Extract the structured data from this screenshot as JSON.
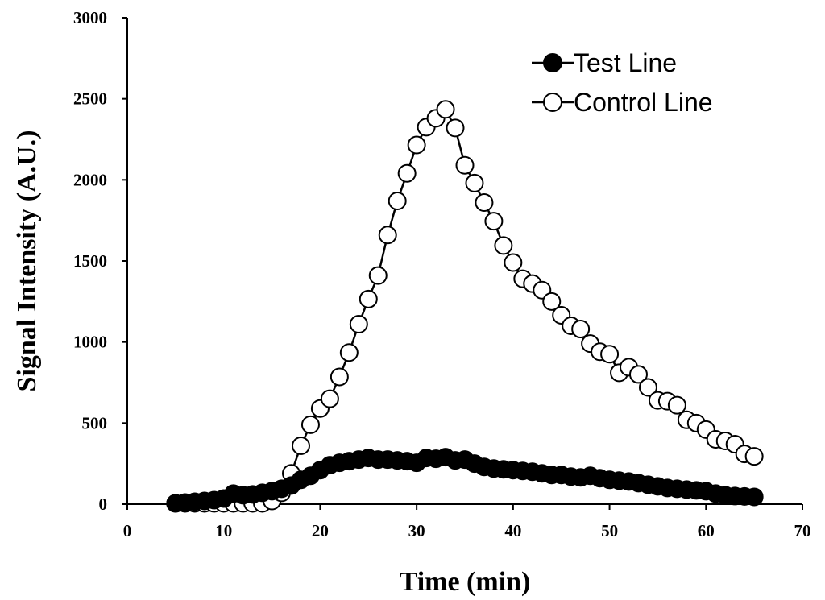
{
  "chart_data": {
    "type": "line",
    "title": "",
    "xlabel": "Time (min)",
    "ylabel": "Signal Intensity (A.U.)",
    "xlim": [
      0,
      70
    ],
    "ylim": [
      0,
      3000
    ],
    "xticks": [
      0,
      10,
      20,
      30,
      40,
      50,
      60,
      70
    ],
    "yticks": [
      0,
      500,
      1000,
      1500,
      2000,
      2500,
      3000
    ],
    "grid": false,
    "legend_position": "top-right",
    "series": [
      {
        "name": "Test Line",
        "marker": "filled-circle",
        "x": [
          5,
          6,
          7,
          8,
          9,
          10,
          11,
          12,
          13,
          14,
          15,
          16,
          17,
          18,
          19,
          20,
          21,
          22,
          23,
          24,
          25,
          26,
          27,
          28,
          29,
          30,
          31,
          32,
          33,
          34,
          35,
          36,
          37,
          38,
          39,
          40,
          41,
          42,
          43,
          44,
          45,
          46,
          47,
          48,
          49,
          50,
          51,
          52,
          53,
          54,
          55,
          56,
          57,
          58,
          59,
          60,
          61,
          62,
          63,
          64,
          65
        ],
        "y": [
          5,
          10,
          15,
          20,
          25,
          35,
          65,
          55,
          60,
          70,
          80,
          95,
          115,
          150,
          175,
          210,
          240,
          255,
          265,
          275,
          285,
          275,
          275,
          270,
          265,
          255,
          285,
          280,
          290,
          270,
          275,
          250,
          230,
          220,
          215,
          210,
          205,
          200,
          190,
          180,
          180,
          170,
          165,
          175,
          160,
          150,
          145,
          140,
          130,
          120,
          110,
          100,
          95,
          90,
          85,
          80,
          65,
          55,
          50,
          48,
          45
        ]
      },
      {
        "name": "Control Line",
        "marker": "open-circle",
        "x": [
          5,
          6,
          7,
          8,
          9,
          10,
          11,
          12,
          13,
          14,
          15,
          16,
          17,
          18,
          19,
          20,
          21,
          22,
          23,
          24,
          25,
          26,
          27,
          28,
          29,
          30,
          31,
          32,
          33,
          34,
          35,
          36,
          37,
          38,
          39,
          40,
          41,
          42,
          43,
          44,
          45,
          46,
          47,
          48,
          49,
          50,
          51,
          52,
          53,
          54,
          55,
          56,
          57,
          58,
          59,
          60,
          61,
          62,
          63,
          64,
          65
        ],
        "y": [
          5,
          5,
          5,
          5,
          5,
          5,
          5,
          5,
          5,
          5,
          20,
          70,
          190,
          360,
          490,
          590,
          650,
          785,
          935,
          1110,
          1265,
          1410,
          1660,
          1870,
          2040,
          2215,
          2325,
          2380,
          2435,
          2320,
          2090,
          1980,
          1860,
          1745,
          1595,
          1490,
          1390,
          1360,
          1320,
          1250,
          1165,
          1100,
          1080,
          990,
          940,
          925,
          810,
          845,
          800,
          720,
          640,
          635,
          610,
          520,
          500,
          460,
          400,
          390,
          370,
          310,
          295
        ]
      }
    ]
  }
}
